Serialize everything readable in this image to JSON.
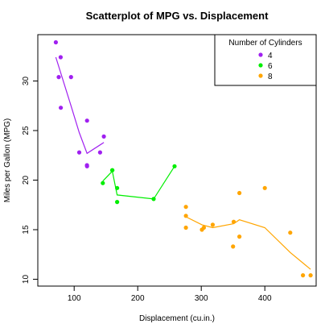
{
  "chart_data": {
    "type": "scatter",
    "title": "Scatterplot of MPG vs. Displacement",
    "xlabel": "Displacement (cu.in.)",
    "ylabel": "Miles per Gallon (MPG)",
    "xlim": [
      60,
      480
    ],
    "ylim": [
      10,
      35
    ],
    "xticks": [
      100,
      200,
      300,
      400
    ],
    "yticks": [
      10,
      15,
      20,
      25,
      30
    ],
    "grid": false,
    "legend": {
      "title": "Number of Cylinders",
      "placement": "top-right"
    },
    "series": [
      {
        "name": "4",
        "color": "#a020f0",
        "points": [
          [
            71.1,
            33.9
          ],
          [
            75.7,
            30.4
          ],
          [
            78.7,
            32.4
          ],
          [
            79,
            27.3
          ],
          [
            95.1,
            30.4
          ],
          [
            108,
            22.8
          ],
          [
            120.1,
            21.5
          ],
          [
            120.3,
            26
          ],
          [
            120.3,
            21.4
          ],
          [
            140.8,
            22.8
          ],
          [
            146.7,
            24.4
          ]
        ],
        "smooth": [
          [
            71.1,
            32.4
          ],
          [
            95,
            27.5
          ],
          [
            108,
            24.8
          ],
          [
            120.2,
            22.7
          ],
          [
            146.7,
            23.8
          ]
        ]
      },
      {
        "name": "6",
        "color": "#00ee00",
        "points": [
          [
            145,
            19.7
          ],
          [
            160,
            21
          ],
          [
            160,
            21
          ],
          [
            167.6,
            19.2
          ],
          [
            167.6,
            17.8
          ],
          [
            225,
            18.1
          ],
          [
            258,
            21.4
          ]
        ],
        "smooth": [
          [
            145,
            19.9
          ],
          [
            160,
            20.9
          ],
          [
            167.6,
            18.5
          ],
          [
            225,
            18.1
          ],
          [
            258,
            21.4
          ]
        ]
      },
      {
        "name": "8",
        "color": "#ffa500",
        "points": [
          [
            275.8,
            17.3
          ],
          [
            275.8,
            16.4
          ],
          [
            275.8,
            15.2
          ],
          [
            301,
            15
          ],
          [
            304,
            15.2
          ],
          [
            318,
            15.5
          ],
          [
            350,
            13.3
          ],
          [
            351,
            15.8
          ],
          [
            360,
            18.7
          ],
          [
            360,
            14.3
          ],
          [
            400,
            19.2
          ],
          [
            440,
            14.7
          ],
          [
            460,
            10.4
          ],
          [
            472,
            10.4
          ]
        ],
        "smooth": [
          [
            275.8,
            16.3
          ],
          [
            301,
            15.5
          ],
          [
            318,
            15.2
          ],
          [
            351,
            15.6
          ],
          [
            360,
            16
          ],
          [
            400,
            15.2
          ],
          [
            440,
            12.7
          ],
          [
            472,
            11
          ]
        ]
      }
    ]
  }
}
